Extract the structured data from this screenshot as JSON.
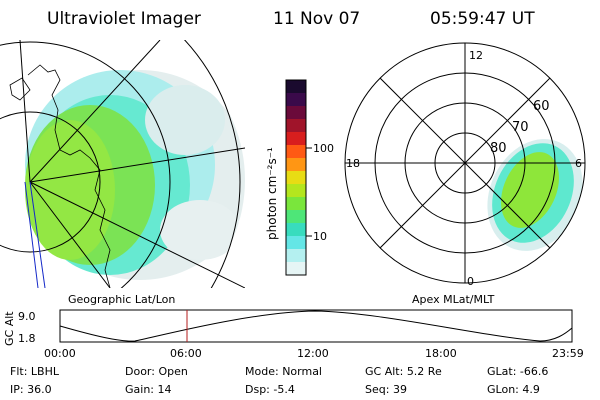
{
  "header": {
    "instrument": "Ultraviolet Imager",
    "date": "11 Nov 07",
    "time": "05:59:47 UT"
  },
  "left_panel": {
    "label": "Geographic Lat/Lon"
  },
  "right_panel": {
    "label": "Apex MLat/MLT",
    "mlt_labels": {
      "top": "12",
      "left": "18",
      "right": "6",
      "bottom": "0"
    },
    "lat_labels": [
      "60",
      "70",
      "80"
    ]
  },
  "colorbar": {
    "unit_label": "photon cm⁻²s⁻¹",
    "tick_labels": [
      "100",
      "10"
    ],
    "colors": [
      "#1a0a2e",
      "#3a0a4a",
      "#6a0a3a",
      "#a0142a",
      "#d81e1e",
      "#ff5a14",
      "#ff9614",
      "#e8dc14",
      "#b4e61e",
      "#7ae63c",
      "#4ee678",
      "#38dcbe",
      "#64e6e6",
      "#b4f0f0",
      "#e6f5f5"
    ]
  },
  "altitude_strip": {
    "ylabel": "GC Alt",
    "y_ticks": [
      "9.0",
      "1.8"
    ],
    "x_ticks": [
      "00:00",
      "06:00",
      "12:00",
      "18:00",
      "23:59"
    ],
    "marker_color": "#b41e1e"
  },
  "status": {
    "row1": [
      {
        "label": "Flt:",
        "value": "LBHL"
      },
      {
        "label": "Door:",
        "value": "Open"
      },
      {
        "label": "Mode:",
        "value": "Normal"
      },
      {
        "label": "GC Alt:",
        "value": "5.2 Re"
      },
      {
        "label": "GLat:",
        "value": "-66.6"
      }
    ],
    "row2": [
      {
        "label": "IP:",
        "value": "36.0"
      },
      {
        "label": "Gain:",
        "value": "14"
      },
      {
        "label": "Dsp:",
        "value": "-5.4"
      },
      {
        "label": "Seq:",
        "value": "39"
      },
      {
        "label": "GLon:",
        "value": "4.9"
      }
    ]
  }
}
